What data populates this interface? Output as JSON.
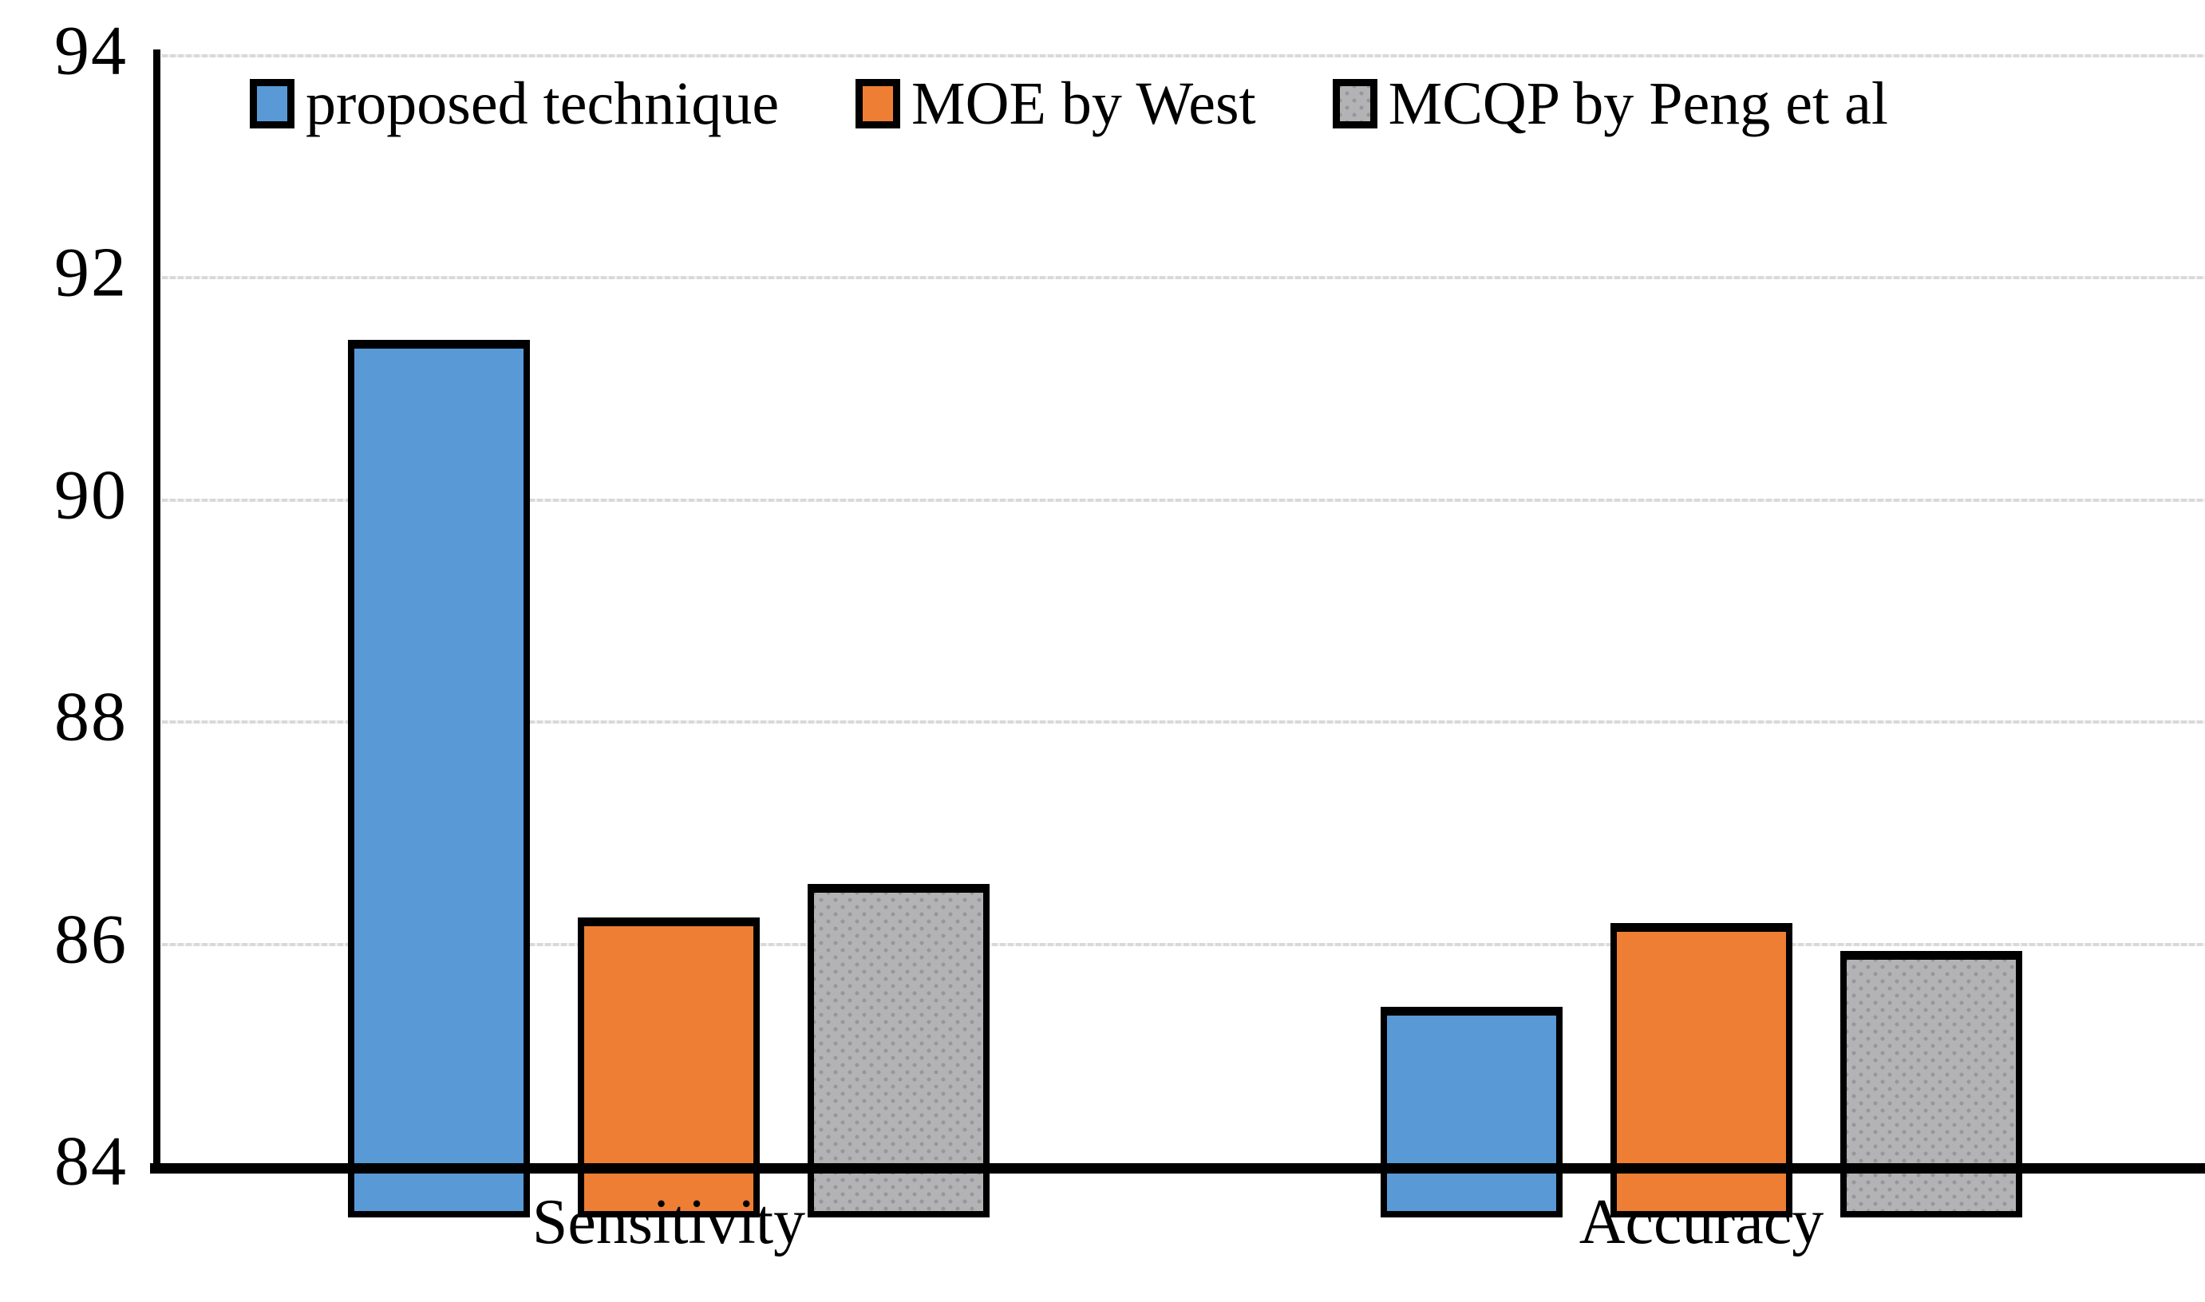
{
  "chart_data": {
    "type": "bar",
    "title": "",
    "xlabel": "",
    "ylabel": "",
    "categories": [
      "Sensitivity",
      "Accuracy"
    ],
    "series": [
      {
        "name": "proposed technique",
        "color": "#5899D6",
        "pattern": "solid",
        "values": [
          91.9,
          85.9
        ]
      },
      {
        "name": "MOE by West",
        "color": "#EE7E33",
        "pattern": "solid",
        "values": [
          86.7,
          86.65
        ]
      },
      {
        "name": "MCQP by Peng et al",
        "color": "#B3B3B5",
        "pattern": "dots",
        "dot_color": "#97979A",
        "values": [
          87.0,
          86.4
        ]
      }
    ],
    "ylim": [
      84,
      94
    ],
    "yticks": [
      84,
      86,
      88,
      90,
      92,
      94
    ],
    "grid": "horizontal-dotted",
    "gridline_color": "#D9D9D9",
    "axis_color": "#000000",
    "bar_border_color": "#000000",
    "legend_position": "top-inside",
    "background_color": "#ffffff"
  }
}
